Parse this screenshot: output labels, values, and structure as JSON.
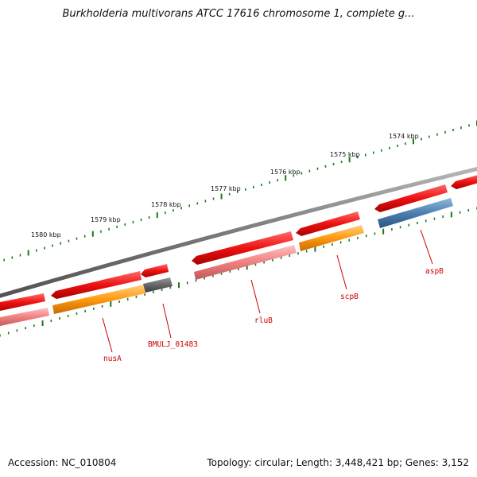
{
  "title": "Burkholderia multivorans ATCC 17616 chromosome 1, complete g...",
  "footer": {
    "accession": "Accession: NC_010804",
    "summary": "Topology: circular; Length: 3,448,421 bp; Genes: 3,152"
  },
  "colors": {
    "red_gene": "#ee1111",
    "pink_gene": "#f08080",
    "orange_gene": "#ff9910",
    "gray_gene": "#666666",
    "blue_gene": "#4a7fb0",
    "backbone": "#808080",
    "tick": "#1a7a1a",
    "gene_label": "#cc0000"
  },
  "ticks": [
    {
      "label": "1580 kbp"
    },
    {
      "label": "1579 kbp"
    },
    {
      "label": "1578 kbp"
    },
    {
      "label": "1577 kbp"
    },
    {
      "label": "1576 kbp"
    },
    {
      "label": "1575 kbp"
    },
    {
      "label": "1574 kbp"
    }
  ],
  "gene_labels": [
    {
      "name": "nusA"
    },
    {
      "name": "BMULJ_01483"
    },
    {
      "name": "rluB"
    },
    {
      "name": "scpB"
    },
    {
      "name": "aspB"
    }
  ]
}
